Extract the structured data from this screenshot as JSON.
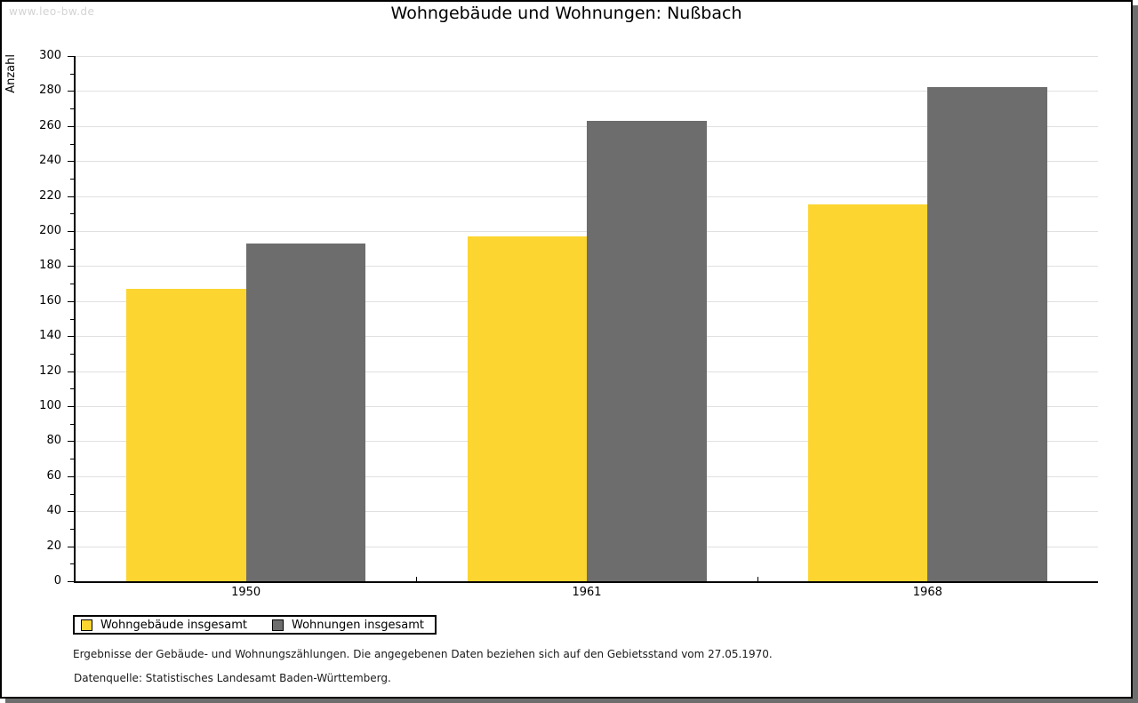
{
  "watermark": "www.leo-bw.de",
  "header": {
    "title": "Wohngebäude und Wohnungen: Nußbach"
  },
  "chart_data": {
    "type": "bar",
    "title": "Wohngebäude und Wohnungen: Nußbach",
    "ylabel": "Anzahl",
    "xlabel": "",
    "ylim": [
      0,
      300
    ],
    "ytick_step": 20,
    "yminor_step": 10,
    "grid": true,
    "legend_position": "bottom-left",
    "categories": [
      "1950",
      "1961",
      "1968"
    ],
    "series": [
      {
        "name": "Wohngebäude insgesamt",
        "color": "#FCD530",
        "values": [
          167,
          197,
          215
        ]
      },
      {
        "name": "Wohnungen insgesamt",
        "color": "#6D6D6D",
        "values": [
          193,
          263,
          282
        ]
      }
    ]
  },
  "footer": {
    "note": "Ergebnisse der Gebäude- und Wohnungszählungen. Die angegebenen Daten beziehen sich auf den Gebietsstand vom 27.05.1970.",
    "source": "Datenquelle: Statistisches Landesamt Baden-Württemberg."
  }
}
